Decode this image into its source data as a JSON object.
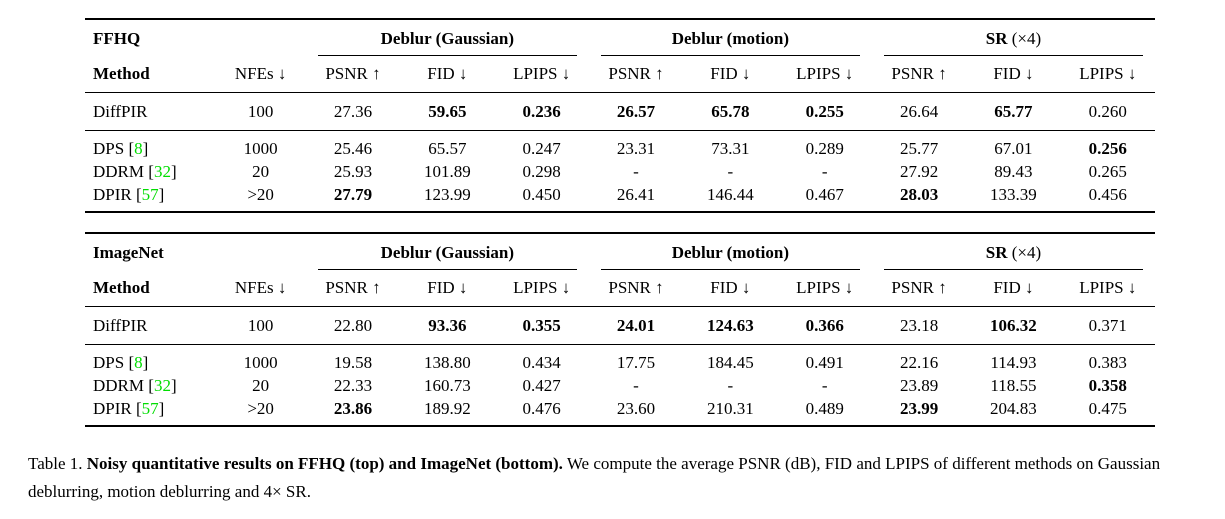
{
  "page": {
    "background": "#ffffff",
    "text_color": "#000000",
    "citation_color": "#00dd00"
  },
  "tables": [
    {
      "dataset": "FFHQ",
      "method_header": "Method",
      "nfes_header": "NFEs ↓",
      "groups": [
        {
          "label_bold": "Deblur (Gaussian)",
          "label_rest": ""
        },
        {
          "label_bold": "Deblur (motion)",
          "label_rest": ""
        },
        {
          "label_bold": "SR",
          "label_rest": " (×4)"
        }
      ],
      "metric_headers": [
        "PSNR ↑",
        "FID ↓",
        "LPIPS ↓"
      ],
      "rows": [
        {
          "method": "DiffPIR",
          "cite_open": "",
          "cite": "",
          "cite_close": "",
          "nfes": "100",
          "values": [
            "27.36",
            "59.65",
            "0.236",
            "26.57",
            "65.78",
            "0.255",
            "26.64",
            "65.77",
            "0.260"
          ],
          "bold": [
            false,
            true,
            true,
            true,
            true,
            true,
            false,
            true,
            false
          ]
        },
        {
          "method": "DPS",
          "cite_open": " [",
          "cite": "8",
          "cite_close": "]",
          "nfes": "1000",
          "values": [
            "25.46",
            "65.57",
            "0.247",
            "23.31",
            "73.31",
            "0.289",
            "25.77",
            "67.01",
            "0.256"
          ],
          "bold": [
            false,
            false,
            false,
            false,
            false,
            false,
            false,
            false,
            true
          ]
        },
        {
          "method": "DDRM",
          "cite_open": " [",
          "cite": "32",
          "cite_close": "]",
          "nfes": "20",
          "values": [
            "25.93",
            "101.89",
            "0.298",
            "-",
            "-",
            "-",
            "27.92",
            "89.43",
            "0.265"
          ],
          "bold": [
            false,
            false,
            false,
            false,
            false,
            false,
            false,
            false,
            false
          ]
        },
        {
          "method": "DPIR",
          "cite_open": " [",
          "cite": "57",
          "cite_close": "]",
          "nfes": ">20",
          "values": [
            "27.79",
            "123.99",
            "0.450",
            "26.41",
            "146.44",
            "0.467",
            "28.03",
            "133.39",
            "0.456"
          ],
          "bold": [
            true,
            false,
            false,
            false,
            false,
            false,
            true,
            false,
            false
          ]
        }
      ]
    },
    {
      "dataset": "ImageNet",
      "method_header": "Method",
      "nfes_header": "NFEs ↓",
      "groups": [
        {
          "label_bold": "Deblur (Gaussian)",
          "label_rest": ""
        },
        {
          "label_bold": "Deblur (motion)",
          "label_rest": ""
        },
        {
          "label_bold": "SR",
          "label_rest": " (×4)"
        }
      ],
      "metric_headers": [
        "PSNR ↑",
        "FID ↓",
        "LPIPS ↓"
      ],
      "rows": [
        {
          "method": "DiffPIR",
          "cite_open": "",
          "cite": "",
          "cite_close": "",
          "nfes": "100",
          "values": [
            "22.80",
            "93.36",
            "0.355",
            "24.01",
            "124.63",
            "0.366",
            "23.18",
            "106.32",
            "0.371"
          ],
          "bold": [
            false,
            true,
            true,
            true,
            true,
            true,
            false,
            true,
            false
          ]
        },
        {
          "method": "DPS",
          "cite_open": " [",
          "cite": "8",
          "cite_close": "]",
          "nfes": "1000",
          "values": [
            "19.58",
            "138.80",
            "0.434",
            "17.75",
            "184.45",
            "0.491",
            "22.16",
            "114.93",
            "0.383"
          ],
          "bold": [
            false,
            false,
            false,
            false,
            false,
            false,
            false,
            false,
            false
          ]
        },
        {
          "method": "DDRM",
          "cite_open": " [",
          "cite": "32",
          "cite_close": "]",
          "nfes": "20",
          "values": [
            "22.33",
            "160.73",
            "0.427",
            "-",
            "-",
            "-",
            "23.89",
            "118.55",
            "0.358"
          ],
          "bold": [
            false,
            false,
            false,
            false,
            false,
            false,
            false,
            false,
            true
          ]
        },
        {
          "method": "DPIR",
          "cite_open": " [",
          "cite": "57",
          "cite_close": "]",
          "nfes": ">20",
          "values": [
            "23.86",
            "189.92",
            "0.476",
            "23.60",
            "210.31",
            "0.489",
            "23.99",
            "204.83",
            "0.475"
          ],
          "bold": [
            true,
            false,
            false,
            false,
            false,
            false,
            true,
            false,
            false
          ]
        }
      ]
    }
  ],
  "caption": {
    "prefix": "Table 1.",
    "bold": "Noisy quantitative results on FFHQ (top) and ImageNet (bottom).",
    "rest": "We compute the average PSNR (dB), FID and LPIPS of different methods on Gaussian deblurring, motion deblurring and 4× SR."
  }
}
